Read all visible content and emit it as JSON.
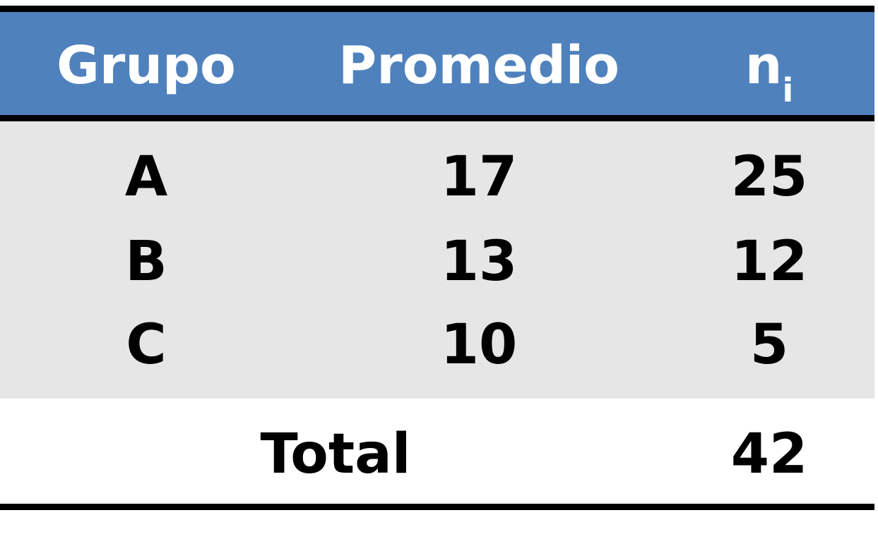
{
  "table": {
    "headers": {
      "group": "Grupo",
      "mean": "Promedio",
      "n_base": "n",
      "n_sub": "i"
    },
    "rows": [
      {
        "group": "A",
        "mean": "17",
        "n": "25"
      },
      {
        "group": "B",
        "mean": "13",
        "n": "12"
      },
      {
        "group": "C",
        "mean": "10",
        "n": "5"
      }
    ],
    "total": {
      "label": "Total",
      "value": "42"
    }
  },
  "colors": {
    "header_bg": "#4f81bd",
    "header_text": "#ffffff",
    "body_bg": "#e6e6e6",
    "rule": "#000000"
  }
}
